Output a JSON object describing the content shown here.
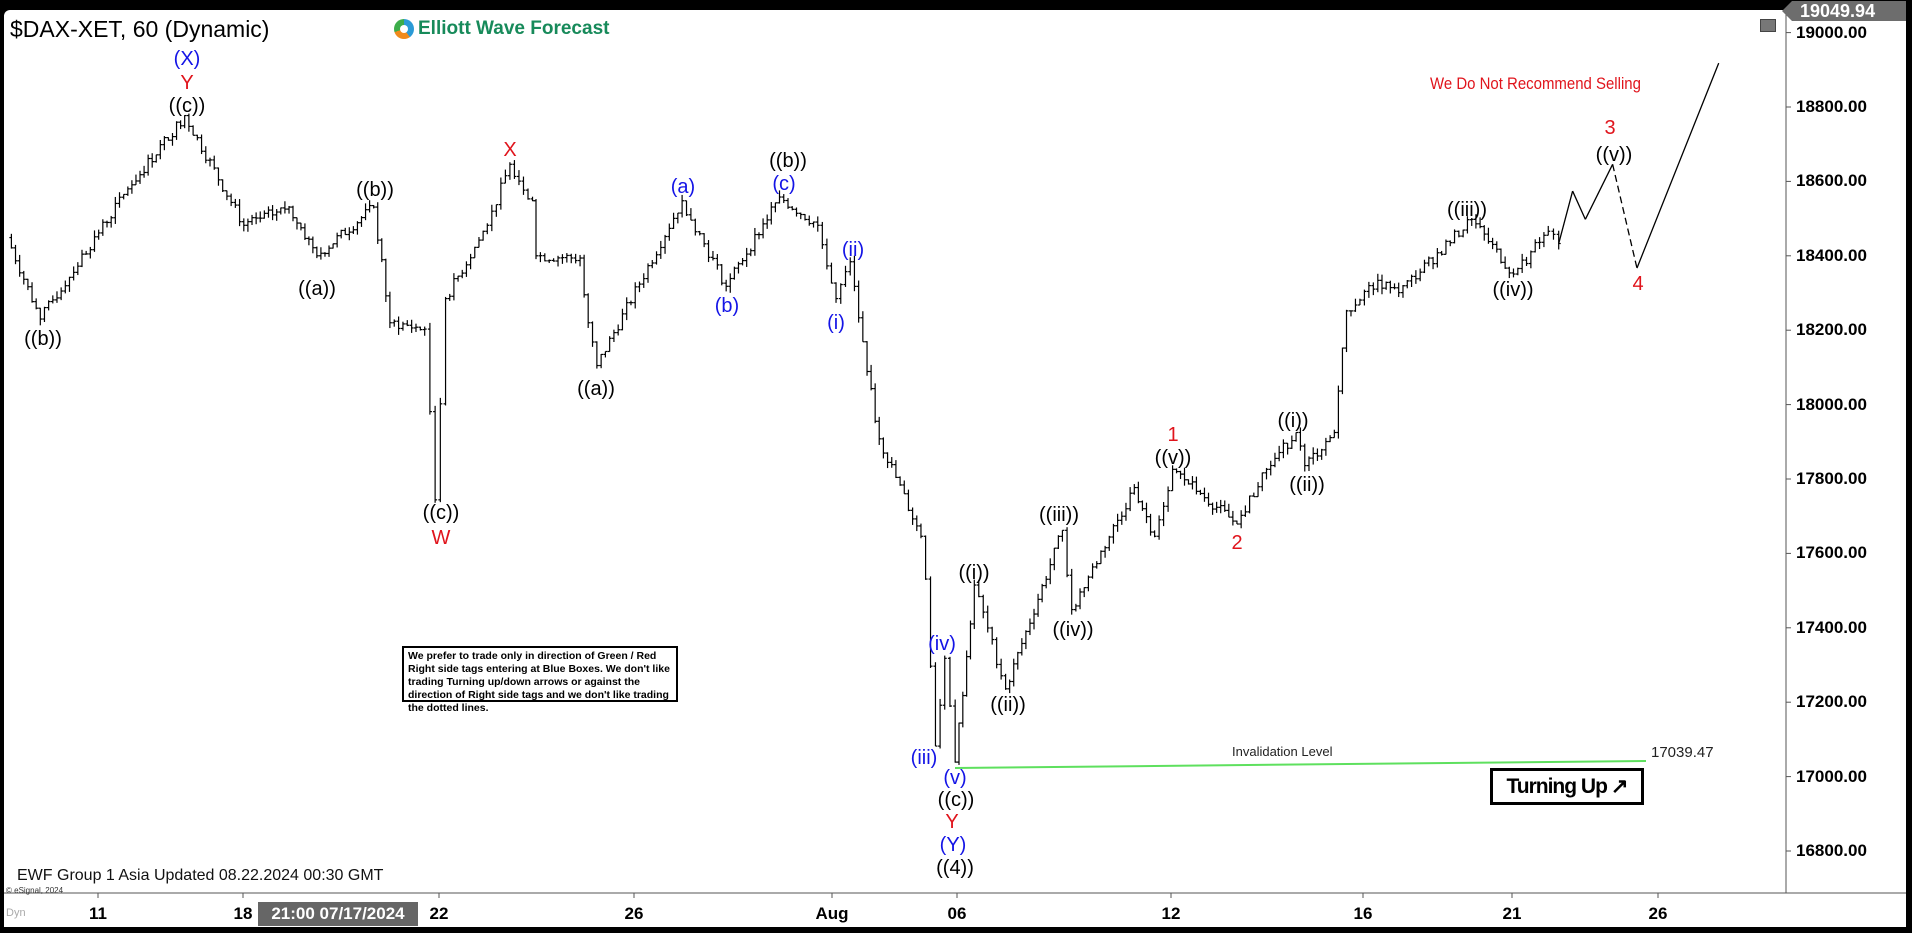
{
  "header": {
    "title": "$DAX-XET, 60 (Dynamic)",
    "logo_text": "Elliott Wave Forecast",
    "last_price": "19049.94"
  },
  "notes": {
    "sell_warning": "We Do Not Recommend Selling",
    "disclaimer": "We prefer to trade only in direction of Green / Red Right side tags entering at Blue Boxes. We don't like trading Turning up/down arrows or against the direction of Right side tags and we don't like trading the dotted lines.",
    "invalidation_label": "Invalidation Level",
    "invalidation_value": "17039.47",
    "turning_label": "Turning Up",
    "turning_icon": "arrow-up-right-icon",
    "updated": "EWF Group 1 Asia Updated 08.22.2024 00:30 GMT",
    "copyright": "© eSignal, 2024",
    "dyn": "Dyn",
    "cursor_time": "21:00 07/17/2024"
  },
  "colors": {
    "blue": "#1414e6",
    "red": "#e0141c",
    "black": "#000000",
    "invalidation": "#5ee05e",
    "logo": "#178a5a"
  },
  "chart_data": {
    "type": "ohlc-bar",
    "ylim": [
      16700,
      19050
    ],
    "y_ticks": [
      "19000.00",
      "18800.00",
      "18600.00",
      "18400.00",
      "18200.00",
      "18000.00",
      "17800.00",
      "17600.00",
      "17400.00",
      "17200.00",
      "17000.00",
      "16800.00"
    ],
    "x_ticks": [
      "11",
      "18",
      "22",
      "26",
      "Aug",
      "06",
      "12",
      "16",
      "21",
      "26"
    ],
    "invalidation_level": 17039.47,
    "price_path": [
      [
        "2024-07-09 10:00",
        18449
      ],
      [
        "2024-07-09 19:30",
        18230
      ],
      [
        "2024-07-11 16:40",
        18580
      ],
      [
        "2024-07-12 19:00",
        18777
      ],
      [
        "2024-07-16 08:00",
        18482
      ],
      [
        "2024-07-16 21:00",
        18531
      ],
      [
        "2024-07-17 15:00",
        18400
      ],
      [
        "2024-07-18 17:20",
        18531
      ],
      [
        "2024-07-19 08:00",
        18220
      ],
      [
        "2024-07-19 18:00",
        18203
      ],
      [
        "2024-07-19 21:00",
        17744
      ],
      [
        "2024-07-22 10:00",
        18285
      ],
      [
        "2024-07-23 08:00",
        18482
      ],
      [
        "2024-07-23 14:30",
        18646
      ],
      [
        "2024-07-23 21:00",
        18548
      ],
      [
        "2024-07-24 08:00",
        18400
      ],
      [
        "2024-07-24 20:40",
        18394
      ],
      [
        "2024-07-25 09:00",
        18220
      ],
      [
        "2024-07-25 11:30",
        18105
      ],
      [
        "2024-07-29 08:00",
        18548
      ],
      [
        "2024-07-29 20:40",
        18318
      ],
      [
        "2024-07-31 08:00",
        18558
      ],
      [
        "2024-07-31 19:00",
        18482
      ],
      [
        "2024-08-01 10:15",
        18285
      ],
      [
        "2024-08-01 14:20",
        18384
      ],
      [
        "2024-08-01 19:10",
        18089
      ],
      [
        "2024-08-02 08:40",
        17908
      ],
      [
        "2024-08-02 20:40",
        17646
      ],
      [
        "2024-08-05 08:00",
        17531
      ],
      [
        "2024-08-05 10:50",
        17082
      ],
      [
        "2024-08-05 13:30",
        17318
      ],
      [
        "2024-08-05 16:30",
        17039
      ],
      [
        "2024-08-06 08:00",
        17515
      ],
      [
        "2024-08-06 17:00",
        17236
      ],
      [
        "2024-08-07 19:20",
        17662
      ],
      [
        "2024-08-08 08:00",
        17449
      ],
      [
        "2024-08-09 12:00",
        17777
      ],
      [
        "2024-08-09 17:50",
        17646
      ],
      [
        "2024-08-12 09:00",
        17826
      ],
      [
        "2024-08-12 17:00",
        17761
      ],
      [
        "2024-08-13 13:30",
        17679
      ],
      [
        "2024-08-14 08:00",
        17826
      ],
      [
        "2024-08-14 16:30",
        17925
      ],
      [
        "2024-08-14 19:00",
        17836
      ],
      [
        "2024-08-15 13:30",
        17925
      ],
      [
        "2024-08-15 17:00",
        18252
      ],
      [
        "2024-08-16 12:00",
        18334
      ],
      [
        "2024-08-16 18:00",
        18301
      ],
      [
        "2024-08-20 11:00",
        18498
      ],
      [
        "2024-08-21 09:00",
        18351
      ],
      [
        "2024-08-21 19:00",
        18466
      ],
      [
        "2024-08-22 08:00",
        18433
      ]
    ],
    "projection": [
      {
        "from": [
          "2024-08-22 08:00",
          18433
        ],
        "to": [
          "2024-08-22 12:00",
          18574
        ],
        "style": "solid"
      },
      {
        "from": [
          "2024-08-22 12:00",
          18574
        ],
        "to": [
          "2024-08-22 15:40",
          18498
        ],
        "style": "solid"
      },
      {
        "from": [
          "2024-08-22 15:40",
          18498
        ],
        "to": [
          "2024-08-23 09:30",
          18646
        ],
        "style": "solid"
      },
      {
        "from": [
          "2024-08-23 09:30",
          18646
        ],
        "to": [
          "2024-08-23 16:30",
          18367
        ],
        "style": "dashed"
      },
      {
        "from": [
          "2024-08-23 16:30",
          18367
        ],
        "to": [
          "2024-08-27 12:00",
          18918
        ],
        "style": "solid"
      }
    ],
    "wave_labels": [
      {
        "text": "(X)",
        "color": "blue"
      },
      {
        "text": "Y",
        "color": "red"
      },
      {
        "text": "((c))",
        "color": "black"
      },
      {
        "text": "((b))",
        "color": "black"
      },
      {
        "text": "((b))",
        "color": "black"
      },
      {
        "text": "((a))",
        "color": "black"
      },
      {
        "text": "((c))",
        "color": "black"
      },
      {
        "text": "W",
        "color": "red"
      },
      {
        "text": "X",
        "color": "red"
      },
      {
        "text": "((a))",
        "color": "black"
      },
      {
        "text": "(a)",
        "color": "blue"
      },
      {
        "text": "(b)",
        "color": "blue"
      },
      {
        "text": "((b))",
        "color": "black"
      },
      {
        "text": "(c)",
        "color": "blue"
      },
      {
        "text": "(ii)",
        "color": "blue"
      },
      {
        "text": "(i)",
        "color": "blue"
      },
      {
        "text": "(iv)",
        "color": "blue"
      },
      {
        "text": "(iii)",
        "color": "blue"
      },
      {
        "text": "(v)",
        "color": "blue"
      },
      {
        "text": "((c))",
        "color": "black"
      },
      {
        "text": "Y",
        "color": "red"
      },
      {
        "text": "(Y)",
        "color": "blue"
      },
      {
        "text": "((4))",
        "color": "black"
      },
      {
        "text": "((i))",
        "color": "black"
      },
      {
        "text": "((ii))",
        "color": "black"
      },
      {
        "text": "((iii))",
        "color": "black"
      },
      {
        "text": "((iv))",
        "color": "black"
      },
      {
        "text": "1",
        "color": "red"
      },
      {
        "text": "((v))",
        "color": "black"
      },
      {
        "text": "2",
        "color": "red"
      },
      {
        "text": "((i))",
        "color": "black"
      },
      {
        "text": "((ii))",
        "color": "black"
      },
      {
        "text": "((iii))",
        "color": "black"
      },
      {
        "text": "((iv))",
        "color": "black"
      },
      {
        "text": "3",
        "color": "red"
      },
      {
        "text": "((v))",
        "color": "black"
      },
      {
        "text": "4",
        "color": "red"
      }
    ]
  }
}
